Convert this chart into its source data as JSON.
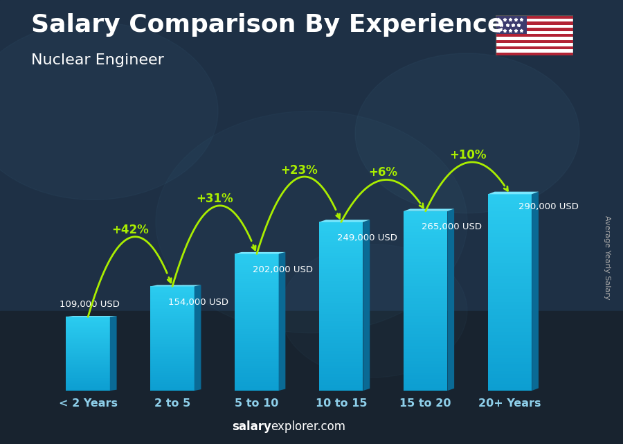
{
  "title": "Salary Comparison By Experience",
  "subtitle": "Nuclear Engineer",
  "categories": [
    "< 2 Years",
    "2 to 5",
    "5 to 10",
    "10 to 15",
    "15 to 20",
    "20+ Years"
  ],
  "values": [
    109000,
    154000,
    202000,
    249000,
    265000,
    290000
  ],
  "salary_labels": [
    "109,000 USD",
    "154,000 USD",
    "202,000 USD",
    "249,000 USD",
    "265,000 USD",
    "290,000 USD"
  ],
  "pct_changes": [
    "+42%",
    "+31%",
    "+23%",
    "+6%",
    "+10%"
  ],
  "bar_color_main": "#1ab8e8",
  "bar_color_light": "#3dd4ff",
  "bar_color_side": "#0d7aaa",
  "bar_color_top": "#5ee8ff",
  "text_color_white": "#ffffff",
  "text_color_green": "#aaee00",
  "title_fontsize": 26,
  "subtitle_fontsize": 16,
  "ylabel": "Average Yearly Salary",
  "footer_salary": "salary",
  "footer_rest": "explorer.com",
  "ylim": [
    0,
    380000
  ],
  "bg_color": "#1a2535"
}
